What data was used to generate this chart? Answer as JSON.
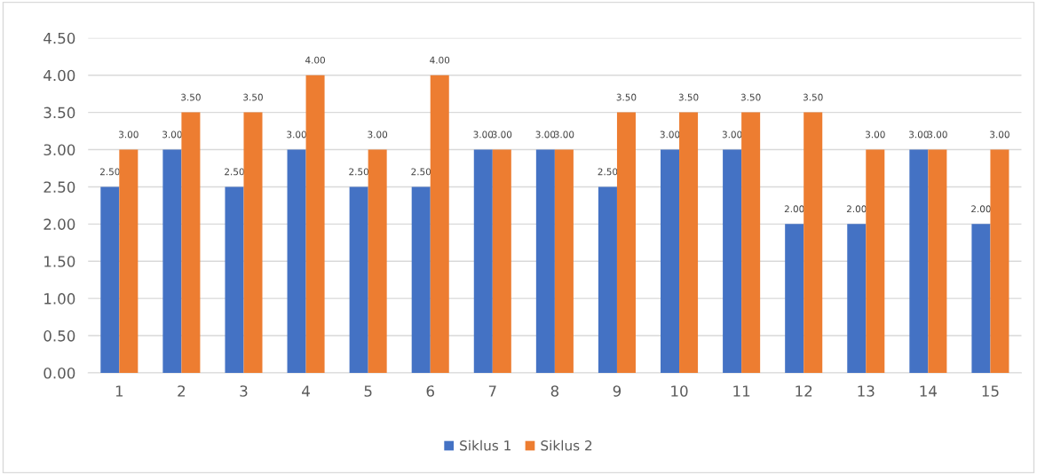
{
  "chart_data": {
    "type": "bar",
    "categories": [
      "1",
      "2",
      "3",
      "4",
      "5",
      "6",
      "7",
      "8",
      "9",
      "10",
      "11",
      "12",
      "13",
      "14",
      "15"
    ],
    "series": [
      {
        "name": "Siklus 1",
        "color": "#4472c4",
        "values": [
          2.5,
          3,
          2.5,
          3,
          2.5,
          2.5,
          3,
          3,
          2.5,
          3,
          3,
          2,
          2,
          3,
          2
        ],
        "value_labels": [
          "2.50",
          "3.00",
          "2.50",
          "3.00",
          "2.50",
          "2.50",
          "3.00",
          "3.00",
          "2.50",
          "3.00",
          "3.00",
          "2.00",
          "2.00",
          "3.00",
          "2.00"
        ]
      },
      {
        "name": "Siklus 2",
        "color": "#ed7d31",
        "values": [
          3,
          3.5,
          3.5,
          4,
          3,
          4,
          3,
          3,
          3.5,
          3.5,
          3.5,
          3.5,
          3,
          3,
          3
        ],
        "value_labels": [
          "3.00",
          "3.50",
          "3.50",
          "4.00",
          "3.00",
          "4.00",
          "3.00",
          "3.00",
          "3.50",
          "3.50",
          "3.50",
          "3.50",
          "3.00",
          "3.00",
          "3.00"
        ]
      }
    ],
    "ylim": [
      0,
      4.5
    ],
    "yticks": [
      {
        "value": 0,
        "label": "0.00"
      },
      {
        "value": 0.5,
        "label": "0.50"
      },
      {
        "value": 1,
        "label": "1.00"
      },
      {
        "value": 1.5,
        "label": "1.50"
      },
      {
        "value": 2,
        "label": "2.00"
      },
      {
        "value": 2.5,
        "label": "2.50"
      },
      {
        "value": 3,
        "label": "3.00"
      },
      {
        "value": 3.5,
        "label": "3.50"
      },
      {
        "value": 4,
        "label": "4.00"
      },
      {
        "value": 4.5,
        "label": "4.50"
      }
    ],
    "grid": "y",
    "legend": "bottom"
  }
}
